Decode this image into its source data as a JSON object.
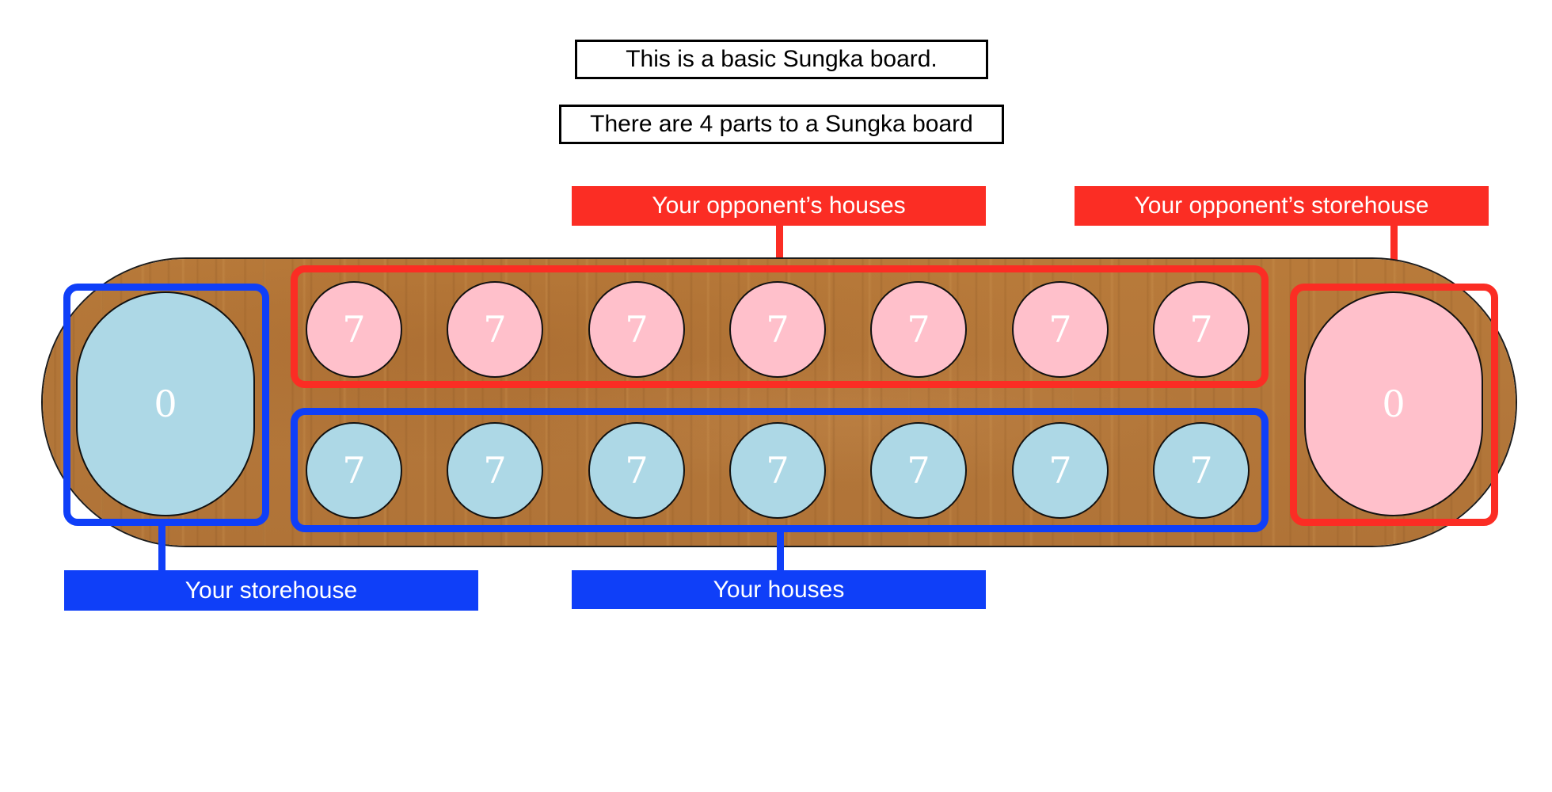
{
  "intro": {
    "line1": "This is a basic Sungka board.",
    "line2": "There are 4 parts to a Sungka board"
  },
  "labels": {
    "opponent_houses": "Your opponent’s houses",
    "opponent_storehouse": "Your opponent’s storehouse",
    "your_storehouse": "Your storehouse",
    "your_houses": "Your houses"
  },
  "colors": {
    "player": "#0f3ff8",
    "opponent": "#fb2d24",
    "player_pit": "#add8e6",
    "opponent_pit": "#ffc0cb"
  },
  "board": {
    "opponent_houses": [
      "7",
      "7",
      "7",
      "7",
      "7",
      "7",
      "7"
    ],
    "your_houses": [
      "7",
      "7",
      "7",
      "7",
      "7",
      "7",
      "7"
    ],
    "your_storehouse": "0",
    "opponent_storehouse": "0"
  }
}
